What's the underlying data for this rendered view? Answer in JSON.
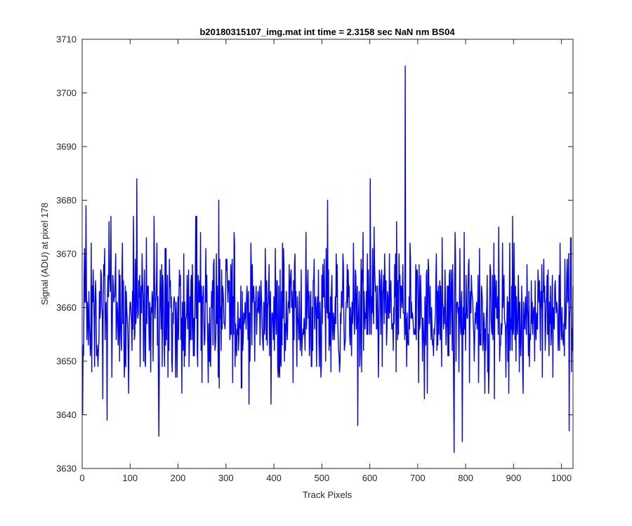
{
  "chart_data": {
    "type": "line",
    "title": "b20180315107_img.mat int time = 2.3158 sec  NaN nm BS04",
    "xlabel": "Track Pixels",
    "ylabel": "Signal (ADU) at pixel 178",
    "xlim": [
      0,
      1024
    ],
    "ylim": [
      3630,
      3710
    ],
    "xticks": [
      0,
      100,
      200,
      300,
      400,
      500,
      600,
      700,
      800,
      900,
      1000
    ],
    "yticks": [
      3630,
      3640,
      3650,
      3660,
      3670,
      3680,
      3690,
      3700,
      3710
    ],
    "grid": false,
    "series": [
      {
        "color": "#0000ff",
        "x_start": 1,
        "x_step": 1,
        "y_summary": {
          "mean": 3659,
          "min": 3633,
          "max": 3705
        },
        "notable_points": [
          {
            "x": 1,
            "y": 3640
          },
          {
            "x": 8,
            "y": 3679
          },
          {
            "x": 52,
            "y": 3639
          },
          {
            "x": 114,
            "y": 3684
          },
          {
            "x": 160,
            "y": 3636
          },
          {
            "x": 285,
            "y": 3680
          },
          {
            "x": 512,
            "y": 3680
          },
          {
            "x": 575,
            "y": 3638
          },
          {
            "x": 601,
            "y": 3684
          },
          {
            "x": 674,
            "y": 3705
          },
          {
            "x": 776,
            "y": 3633
          },
          {
            "x": 793,
            "y": 3635
          },
          {
            "x": 1016,
            "y": 3637
          },
          {
            "x": 1019,
            "y": 3673
          }
        ]
      }
    ]
  }
}
